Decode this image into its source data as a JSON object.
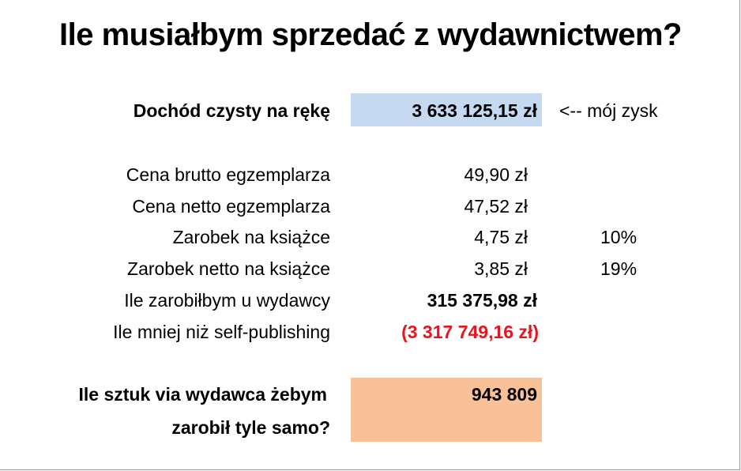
{
  "title": "Ile musiałbym sprzedać z wydawnictwem?",
  "colors": {
    "highlight_blue": "#c5d9f1",
    "highlight_orange": "#f8c197",
    "negative_red": "#e8141e"
  },
  "net_income": {
    "label": "Dochód czysty na rękę",
    "value": "3 633 125,15 zł",
    "note": "<-- mój zysk"
  },
  "rows": [
    {
      "label": "Cena brutto egzemplarza",
      "value": "49,90 zł",
      "pct": ""
    },
    {
      "label": "Cena netto egzemplarza",
      "value": "47,52 zł",
      "pct": ""
    },
    {
      "label": "Zarobek na książce",
      "value": "4,75 zł",
      "pct": "10%"
    },
    {
      "label": "Zarobek netto na książce",
      "value": "3,85 zł",
      "pct": "19%"
    },
    {
      "label": "Ile zarobiłbym u wydawcy",
      "value": "315 375,98 zł",
      "pct": ""
    },
    {
      "label": "Ile mniej niż self-publishing",
      "value": "(3 317 749,16 zł)",
      "pct": ""
    }
  ],
  "copies": {
    "label_line1": "Ile sztuk via wydawca żebym",
    "label_line2": "zarobił tyle samo?",
    "value": "943 809"
  }
}
